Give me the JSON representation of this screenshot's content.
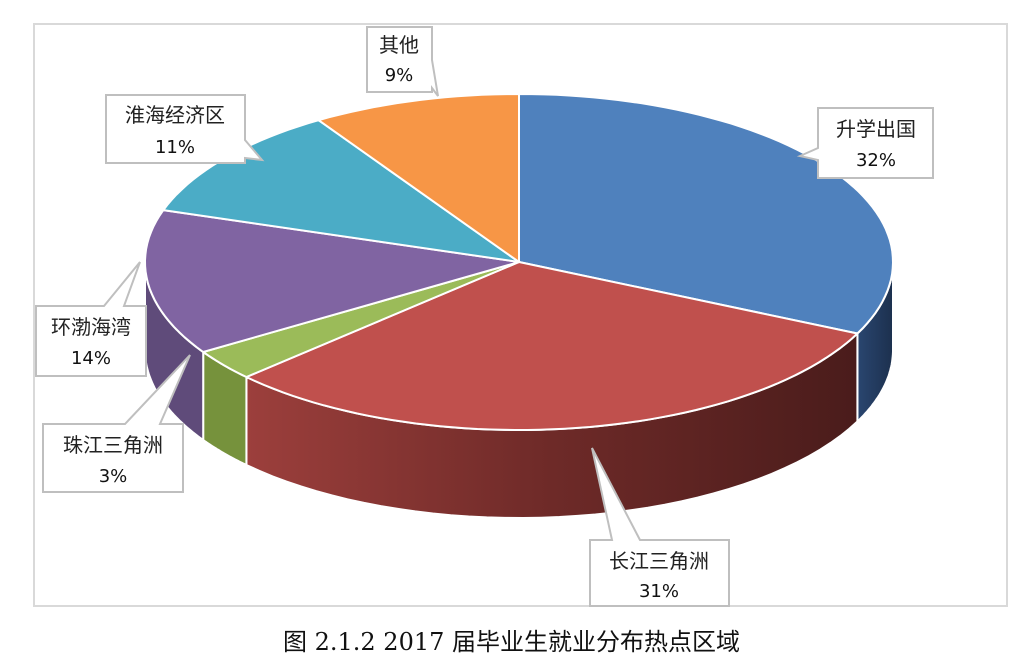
{
  "chart_data": {
    "type": "pie",
    "style": "3d-exploded-none",
    "title": "",
    "caption": "图 2.1.2 2017 届毕业生就业分布热点区域",
    "categories": [
      "升学出国",
      "长江三角洲",
      "珠江三角洲",
      "环渤海湾",
      "淮海经济区",
      "其他"
    ],
    "values": [
      32,
      31,
      3,
      14,
      11,
      9
    ],
    "unit": "%",
    "colors": [
      "#4f81bd",
      "#c0504d",
      "#9bbb59",
      "#8064a2",
      "#4bacc6",
      "#f79646"
    ],
    "start_angle": "12 o'clock, clockwise",
    "legend": "none",
    "data_labels": [
      {
        "name": "升学出国",
        "value": "32%"
      },
      {
        "name": "长江三角洲",
        "value": "31%"
      },
      {
        "name": "珠江三角洲",
        "value": "3%"
      },
      {
        "name": "环渤海湾",
        "value": "14%"
      },
      {
        "name": "淮海经济区",
        "value": "11%"
      },
      {
        "name": "其他",
        "value": "9%"
      }
    ]
  },
  "labels": {
    "s0_name": "升学出国",
    "s0_pct": "32%",
    "s1_name": "长江三角洲",
    "s1_pct": "31%",
    "s2_name": "珠江三角洲",
    "s2_pct": "3%",
    "s3_name": "环渤海湾",
    "s3_pct": "14%",
    "s4_name": "淮海经济区",
    "s4_pct": "11%",
    "s5_name": "其他",
    "s5_pct": "9%"
  },
  "caption": "图 2.1.2 2017 届毕业生就业分布热点区域"
}
